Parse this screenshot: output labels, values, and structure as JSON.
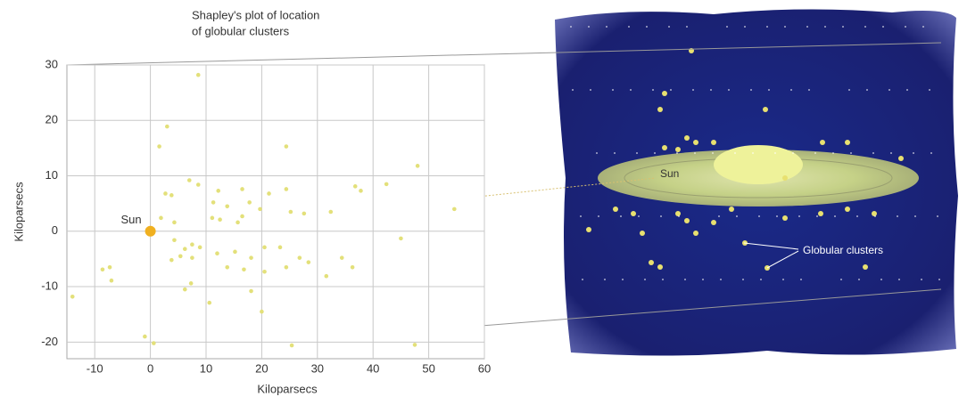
{
  "chart_data": {
    "type": "scatter",
    "title_lines": [
      "Shapley's plot of location",
      "of globular clusters"
    ],
    "xlabel": "Kiloparsecs",
    "ylabel": "Kiloparsecs",
    "xlim": [
      -15,
      60
    ],
    "ylim": [
      -23,
      30
    ],
    "xticks": [
      -10,
      0,
      10,
      20,
      30,
      40,
      50,
      60
    ],
    "yticks": [
      -20,
      -10,
      0,
      10,
      20,
      30
    ],
    "grid": true,
    "color": "#e3e07a",
    "x": [
      8.6,
      3,
      1.6,
      24.4,
      48,
      7,
      8.6,
      2.7,
      3.8,
      12.2,
      16.5,
      21.3,
      24.4,
      36.8,
      37.8,
      42.4,
      11.3,
      13.8,
      17.8,
      19.7,
      11.1,
      12.5,
      15.7,
      16.5,
      25.2,
      27.6,
      32.4,
      54.6,
      1.9,
      4.3,
      45,
      4.3,
      6.2,
      7.5,
      8.9,
      3.8,
      5.4,
      7.5,
      12,
      15.2,
      18.1,
      20.5,
      23.3,
      26.8,
      28.4,
      34.4,
      13.8,
      16.8,
      20.5,
      24.4,
      31.6,
      36.3,
      -7.3,
      -8.6,
      -7,
      7.3,
      6.2,
      10.6,
      18.1,
      -14,
      20,
      -1,
      0.6,
      25.4,
      47.5
    ],
    "y": [
      28.2,
      18.9,
      15.3,
      15.3,
      11.8,
      9.2,
      8.4,
      6.8,
      6.5,
      7.3,
      7.6,
      6.8,
      7.6,
      8.1,
      7.3,
      8.5,
      5.2,
      4.5,
      5.2,
      4,
      2.4,
      2.1,
      1.6,
      2.7,
      3.5,
      3.2,
      3.5,
      4,
      2.4,
      1.6,
      -1.3,
      -1.6,
      -3.2,
      -2.4,
      -2.9,
      -5.2,
      -4.5,
      -4.8,
      -4,
      -3.7,
      -4.8,
      -2.9,
      -2.9,
      -4.8,
      -5.6,
      -4.8,
      -6.5,
      -6.9,
      -7.3,
      -6.5,
      -8.1,
      -6.5,
      -6.5,
      -6.9,
      -8.9,
      -9.4,
      -10.5,
      -12.9,
      -10.8,
      -11.8,
      -14.5,
      -19,
      -20.2,
      -20.6,
      -20.5
    ],
    "sun": {
      "label": "Sun",
      "x": 0,
      "y": 0,
      "color": "#f0b020"
    },
    "illustration_labels": [
      "Sun",
      "Globular clusters"
    ]
  }
}
